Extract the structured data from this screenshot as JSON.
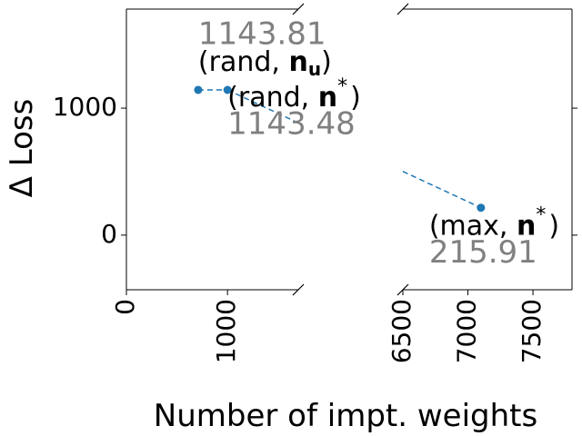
{
  "chart_data": {
    "type": "scatter",
    "title": "",
    "xlabel": "Number of impt. weights",
    "ylabel": "Δ Loss",
    "broken_x_axis": true,
    "x_segments": [
      {
        "xlim": [
          0,
          1700
        ],
        "tick_values": [
          0,
          1000
        ],
        "tick_labels": [
          "0",
          "1000"
        ]
      },
      {
        "xlim": [
          6500,
          7800
        ],
        "tick_values": [
          6500,
          7000,
          7500
        ],
        "tick_labels": [
          "6500",
          "7000",
          "7500"
        ]
      }
    ],
    "ylim": [
      -430,
      1780
    ],
    "y_tick_values": [
      0,
      1000
    ],
    "y_tick_labels": [
      "0",
      "1000"
    ],
    "grid": false,
    "series_color": "#1f77b4",
    "value_color": "#808080",
    "points": [
      {
        "x": 710,
        "y": 1143.81,
        "name_prefix": "(rand, ",
        "name_symbol": "n",
        "name_sub": "u",
        "name_sup": "",
        "name_suffix": ")",
        "value_label": "1143.81"
      },
      {
        "x": 1000,
        "y": 1143.48,
        "name_prefix": "(rand, ",
        "name_symbol": "n",
        "name_sub": "",
        "name_sup": "*",
        "name_suffix": ")",
        "value_label": "1143.48"
      },
      {
        "x": 7100,
        "y": 215.91,
        "name_prefix": "(max, ",
        "name_symbol": "n",
        "name_sub": "",
        "name_sup": "*",
        "name_suffix": ")",
        "value_label": "215.91"
      }
    ]
  }
}
